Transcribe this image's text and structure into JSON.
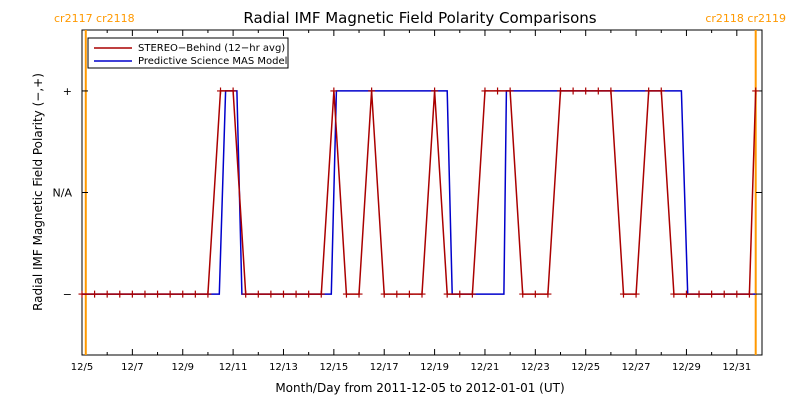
{
  "chart_data": {
    "type": "line",
    "title": "Radial IMF Magnetic Field Polarity Comparisons",
    "xlabel": "Month/Day from 2011-12-05 to 2012-01-01 (UT)",
    "ylabel": "Radial IMF Magnetic Field Polarity (−,+)",
    "x_unit": "days",
    "xlim": [
      0,
      27
    ],
    "ylim": [
      -1.6,
      1.6
    ],
    "x_ticks": [
      {
        "x": 0,
        "label": "12/5"
      },
      {
        "x": 2,
        "label": "12/7"
      },
      {
        "x": 4,
        "label": "12/9"
      },
      {
        "x": 6,
        "label": "12/11"
      },
      {
        "x": 8,
        "label": "12/13"
      },
      {
        "x": 10,
        "label": "12/15"
      },
      {
        "x": 12,
        "label": "12/17"
      },
      {
        "x": 14,
        "label": "12/19"
      },
      {
        "x": 16,
        "label": "12/21"
      },
      {
        "x": 18,
        "label": "12/23"
      },
      {
        "x": 20,
        "label": "12/25"
      },
      {
        "x": 22,
        "label": "12/27"
      },
      {
        "x": 24,
        "label": "12/29"
      },
      {
        "x": 26,
        "label": "12/31"
      }
    ],
    "y_ticks": [
      {
        "y": 1,
        "label": "+"
      },
      {
        "y": 0,
        "label": "N/A"
      },
      {
        "y": -1,
        "label": "−"
      }
    ],
    "carrington_markers": [
      {
        "x": 0.15,
        "label": "cr2117 cr2118",
        "side": "left"
      },
      {
        "x": 26.75,
        "label": "cr2118 cr2119",
        "side": "right"
      }
    ],
    "legend": {
      "placement": "top-left",
      "entries": [
        {
          "label": "STEREO−Behind (12−hr avg)",
          "color": "#aa0000"
        },
        {
          "label": "Predictive Science MAS Model",
          "color": "#0000cc"
        }
      ]
    },
    "series": [
      {
        "name": "STEREO−Behind (12−hr avg)",
        "color": "#aa0000",
        "marker": "plus",
        "points": [
          [
            0,
            -1
          ],
          [
            0.5,
            -1
          ],
          [
            1,
            -1
          ],
          [
            1.5,
            -1
          ],
          [
            2,
            -1
          ],
          [
            2.5,
            -1
          ],
          [
            3,
            -1
          ],
          [
            3.5,
            -1
          ],
          [
            4,
            -1
          ],
          [
            4.5,
            -1
          ],
          [
            5,
            -1
          ],
          [
            5.5,
            1
          ],
          [
            6,
            1
          ],
          [
            6.5,
            -1
          ],
          [
            7,
            -1
          ],
          [
            7.5,
            -1
          ],
          [
            8,
            -1
          ],
          [
            8.5,
            -1
          ],
          [
            9,
            -1
          ],
          [
            9.5,
            -1
          ],
          [
            10,
            1
          ],
          [
            10.5,
            -1
          ],
          [
            11,
            -1
          ],
          [
            11.5,
            1
          ],
          [
            12,
            -1
          ],
          [
            12.5,
            -1
          ],
          [
            13,
            -1
          ],
          [
            13.5,
            -1
          ],
          [
            14,
            1
          ],
          [
            14.5,
            -1
          ],
          [
            15,
            -1
          ],
          [
            15.5,
            -1
          ],
          [
            16,
            1
          ],
          [
            16.5,
            1
          ],
          [
            17,
            1
          ],
          [
            17.5,
            -1
          ],
          [
            18,
            -1
          ],
          [
            18.5,
            -1
          ],
          [
            19,
            1
          ],
          [
            19.5,
            1
          ],
          [
            20,
            1
          ],
          [
            20.5,
            1
          ],
          [
            21,
            1
          ],
          [
            21.5,
            -1
          ],
          [
            22,
            -1
          ],
          [
            22.5,
            1
          ],
          [
            23,
            1
          ],
          [
            23.5,
            -1
          ],
          [
            24,
            -1
          ],
          [
            24.5,
            -1
          ],
          [
            25,
            -1
          ],
          [
            25.5,
            -1
          ],
          [
            26,
            -1
          ],
          [
            26.5,
            -1
          ],
          [
            26.75,
            1
          ]
        ]
      },
      {
        "name": "Predictive Science MAS Model",
        "color": "#0000cc",
        "marker": "none",
        "points": [
          [
            0,
            -1
          ],
          [
            5.45,
            -1
          ],
          [
            5.7,
            1
          ],
          [
            6.15,
            1
          ],
          [
            6.35,
            -1
          ],
          [
            9.9,
            -1
          ],
          [
            10.1,
            1
          ],
          [
            14.5,
            1
          ],
          [
            14.7,
            -1
          ],
          [
            16.75,
            -1
          ],
          [
            16.85,
            1
          ],
          [
            23.8,
            1
          ],
          [
            24.05,
            -1
          ],
          [
            26.75,
            -1
          ]
        ]
      }
    ]
  }
}
